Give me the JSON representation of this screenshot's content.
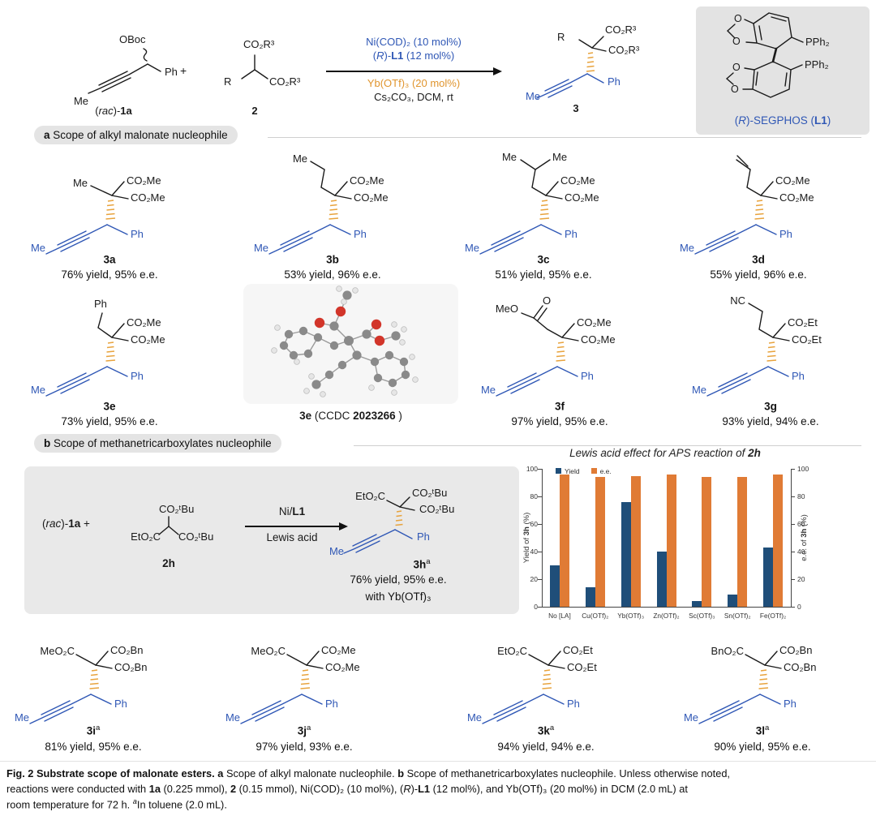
{
  "colors": {
    "blue": "#2f57b5",
    "hash_orange": "#e8a33d",
    "cond_orange": "#e0952e",
    "bar_blue": "#1f4e79",
    "bar_orange": "#e07b35",
    "box_gray": "#e9e9e9"
  },
  "scheme": {
    "oboc": "OBoc",
    "ph": "Ph",
    "me": "Me",
    "plus": "+",
    "label_1a": [
      {
        "t": "("
      },
      {
        "t": "rac",
        "i": 1
      },
      {
        "t": ")-"
      },
      {
        "t": "1a",
        "b": 1
      }
    ],
    "cmpd2": {
      "ester_top": "CO₂R³",
      "r": "R",
      "ester_right": "CO₂R³",
      "label": "2"
    },
    "cond1": "Ni(COD)₂ (10 mol%)",
    "cond2": [
      {
        "t": "("
      },
      {
        "t": "R",
        "i": 1
      },
      {
        "t": ")-"
      },
      {
        "t": "L1",
        "b": 1
      },
      {
        "t": " (12 mol%)"
      }
    ],
    "cond3": "Yb(OTf)₃ (20 mol%)",
    "cond4": "Cs₂CO₃, DCM, rt",
    "prod3": {
      "r": "R",
      "ester1": "CO₂R³",
      "ester2": "CO₂R³",
      "ph": "Ph",
      "me": "Me",
      "label": "3"
    },
    "ligand": {
      "o1": "O",
      "o2": "O",
      "o3": "O",
      "o4": "O",
      "pph2_top": "PPh₂",
      "pph2_bottom": "PPh₂",
      "label": [
        {
          "t": "("
        },
        {
          "t": "R",
          "i": 1
        },
        {
          "t": ")-SEGPHOS ("
        },
        {
          "t": "L1",
          "b": 1
        },
        {
          "t": ")"
        }
      ]
    }
  },
  "section_a": {
    "tag": "a",
    "title": " Scope of alkyl malonate nucleophile"
  },
  "section_b": {
    "tag": "b",
    "title": " Scope of methanetricarboxylates nucleophile"
  },
  "compounds": [
    {
      "id": "3a",
      "sup": "",
      "r1": "Me",
      "e1": "CO₂Me",
      "e2": "CO₂Me",
      "ph": "Ph",
      "me": "Me",
      "yield": "76% yield, 95% e.e."
    },
    {
      "id": "3b",
      "sup": "",
      "r1": "Me",
      "e1": "CO₂Me",
      "e2": "CO₂Me",
      "ph": "Ph",
      "me": "Me",
      "yield": "53% yield, 96% e.e."
    },
    {
      "id": "3c",
      "sup": "",
      "r1": "Me",
      "r2": "Me",
      "e1": "CO₂Me",
      "e2": "CO₂Me",
      "ph": "Ph",
      "me": "Me",
      "yield": "51% yield, 95% e.e."
    },
    {
      "id": "3d",
      "sup": "",
      "e1": "CO₂Me",
      "e2": "CO₂Me",
      "ph": "Ph",
      "me": "Me",
      "yield": "55% yield, 96% e.e."
    },
    {
      "id": "3e",
      "sup": "",
      "r1": "Ph",
      "e1": "CO₂Me",
      "e2": "CO₂Me",
      "ph": "Ph",
      "me": "Me",
      "yield": "73% yield, 95% e.e."
    },
    {
      "id": "3f",
      "sup": "",
      "r1": "MeO",
      "r2": "O",
      "e1": "CO₂Me",
      "e2": "CO₂Me",
      "ph": "Ph",
      "me": "Me",
      "yield": "97% yield, 95% e.e."
    },
    {
      "id": "3g",
      "sup": "",
      "r1": "NC",
      "e1": "CO₂Et",
      "e2": "CO₂Et",
      "ph": "Ph",
      "me": "Me",
      "yield": "93% yield, 94% e.e."
    },
    {
      "id": "3i",
      "sup": "a",
      "r1": "MeO₂C",
      "e1": "CO₂Bn",
      "e2": "CO₂Bn",
      "ph": "Ph",
      "me": "Me",
      "yield": "81% yield, 95% e.e."
    },
    {
      "id": "3j",
      "sup": "a",
      "r1": "MeO₂C",
      "e1": "CO₂Me",
      "e2": "CO₂Me",
      "ph": "Ph",
      "me": "Me",
      "yield": "97% yield, 93% e.e."
    },
    {
      "id": "3k",
      "sup": "a",
      "r1": "EtO₂C",
      "e1": "CO₂Et",
      "e2": "CO₂Et",
      "ph": "Ph",
      "me": "Me",
      "yield": "94% yield, 94% e.e."
    },
    {
      "id": "3l",
      "sup": "a",
      "r1": "BnO₂C",
      "e1": "CO₂Bn",
      "e2": "CO₂Bn",
      "ph": "Ph",
      "me": "Me",
      "yield": "90% yield, 95% e.e."
    }
  ],
  "crystal_label": [
    {
      "t": "3e",
      "b": 1
    },
    {
      "t": " (CCDC "
    },
    {
      "t": "2023266",
      "b": 1
    },
    {
      "t": " )"
    }
  ],
  "scheme_b": {
    "reactant": [
      {
        "t": "("
      },
      {
        "t": "rac",
        "i": 1
      },
      {
        "t": ")-"
      },
      {
        "t": "1a",
        "b": 1
      },
      {
        "t": "  +"
      }
    ],
    "cmpd2h": {
      "ester_top": "CO₂ᵗBu",
      "ester_left": "EtO₂C",
      "ester_right": "CO₂ᵗBu",
      "label": "2h"
    },
    "arrow_top": [
      {
        "t": "Ni/"
      },
      {
        "t": "L1",
        "b": 1
      }
    ],
    "arrow_bottom": "Lewis acid",
    "prod3h": {
      "ester_left": "EtO₂C",
      "e1": "CO₂ᵗBu",
      "e2": "CO₂ᵗBu",
      "ph": "Ph",
      "me": "Me",
      "id": "3h",
      "sup": "a",
      "yield": "76% yield, 95% e.e.",
      "note": "with Yb(OTf)₃"
    }
  },
  "chart_data": {
    "type": "bar",
    "title": [
      {
        "t": "Lewis acid effect for APS reaction of ",
        "i": 1
      },
      {
        "t": "2h",
        "b": 1,
        "i": 1
      }
    ],
    "categories": [
      "No [LA]",
      "Cu(OTf)₂",
      "Yb(OTf)₃",
      "Zn(OTf)₂",
      "Sc(OTf)₃",
      "Sn(OTf)₂",
      "Fe(OTf)₂"
    ],
    "series": [
      {
        "name": "Yield",
        "color": "#1f4e79",
        "values": [
          30,
          14,
          76,
          40,
          4,
          9,
          43
        ]
      },
      {
        "name": "e.e.",
        "color": "#e07b35",
        "values": [
          96,
          94,
          95,
          96,
          94,
          94,
          96
        ]
      }
    ],
    "ylabel_left": [
      {
        "t": "Yield of "
      },
      {
        "t": "3h",
        "b": 1
      },
      {
        "t": " (%)"
      }
    ],
    "ylabel_right": [
      {
        "t": "e.e. of "
      },
      {
        "t": "3h",
        "b": 1
      },
      {
        "t": " (%)"
      }
    ],
    "ylim": [
      0,
      100
    ],
    "yticks": [
      0,
      20,
      40,
      60,
      80,
      100
    ],
    "grid": false,
    "legend_position": "top-left"
  },
  "caption": {
    "lines": [
      [
        {
          "t": "Fig. 2 Substrate scope of malonate esters. ",
          "b": 1
        },
        {
          "t": "a",
          "b": 1
        },
        {
          "t": " Scope of alkyl malonate nucleophile. "
        },
        {
          "t": "b",
          "b": 1
        },
        {
          "t": " Scope of methanetricarboxylates nucleophile. Unless otherwise noted,"
        }
      ],
      [
        {
          "t": "reactions were conducted with "
        },
        {
          "t": "1a",
          "b": 1
        },
        {
          "t": " (0.225 mmol), "
        },
        {
          "t": "2",
          "b": 1
        },
        {
          "t": " (0.15 mmol), Ni(COD)₂ (10 mol%), ("
        },
        {
          "t": "R",
          "i": 1
        },
        {
          "t": ")-"
        },
        {
          "t": "L1",
          "b": 1
        },
        {
          "t": " (12 mol%), and Yb(OTf)₃ (20 mol%) in DCM (2.0 mL) at"
        }
      ],
      [
        {
          "t": "room temperature for 72 h. "
        },
        {
          "t": "a",
          "i": 1,
          "sup": 1
        },
        {
          "t": "In toluene (2.0 mL)."
        }
      ]
    ]
  }
}
